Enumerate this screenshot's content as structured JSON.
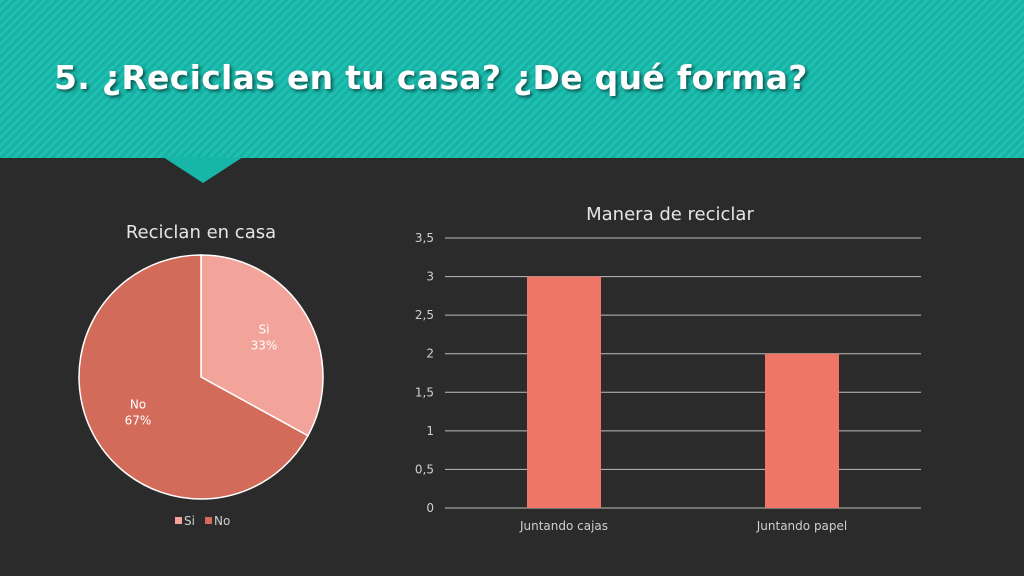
{
  "slide": {
    "title": "5. ¿Reciclas en tu casa? ¿De qué forma?"
  },
  "colors": {
    "header_teal": "#1fbfb1",
    "background": "#2b2b2b",
    "slice_si": "#f2a39a",
    "slice_no": "#d36b5a",
    "bar": "#ef7667"
  },
  "chart_data": [
    {
      "type": "pie",
      "title": "Reciclan en casa",
      "categories": [
        "Si",
        "No"
      ],
      "values": [
        33,
        67
      ],
      "value_labels": [
        "33%",
        "67%"
      ],
      "legend": "bottom"
    },
    {
      "type": "bar",
      "title": "Manera de reciclar",
      "categories": [
        "Juntando cajas",
        "Juntando papel"
      ],
      "values": [
        3,
        2
      ],
      "ylim": [
        0,
        3.5
      ],
      "yticks": [
        "0",
        "0,5",
        "1",
        "1,5",
        "2",
        "2,5",
        "3",
        "3,5"
      ],
      "grid": true,
      "legend": "none"
    }
  ]
}
